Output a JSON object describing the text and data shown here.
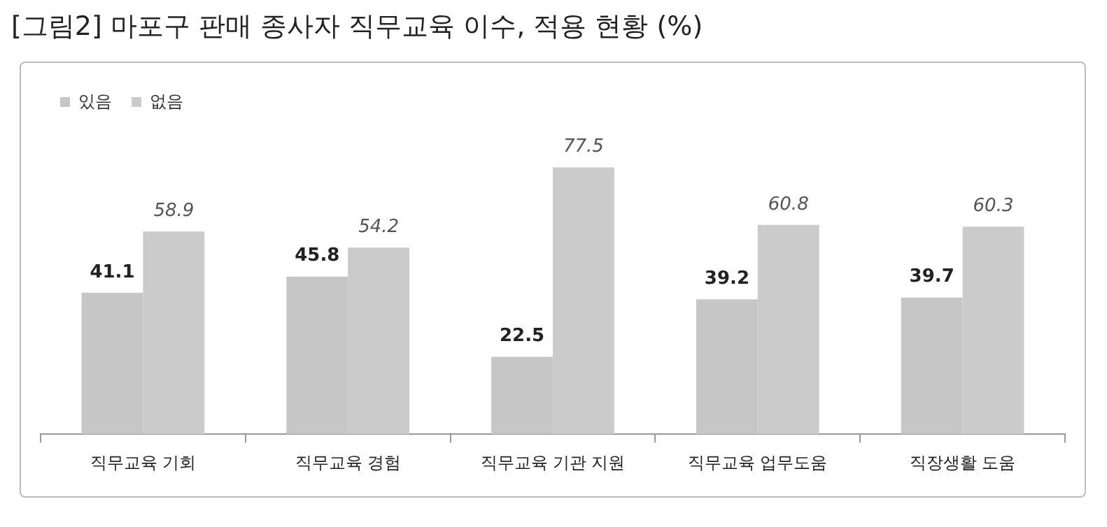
{
  "chart_data": {
    "type": "bar",
    "title": "[그림2] 마포구 판매 종사자 직무교육 이수, 적용 현황 (%)",
    "categories": [
      "직무교육 기회",
      "직무교육 경험",
      "직무교육 기관 지원",
      "직무교육 업무도움",
      "직장생활 도움"
    ],
    "series": [
      {
        "name": "있음",
        "color": "#c6c6c6",
        "values": [
          41.1,
          45.8,
          22.5,
          39.2,
          39.7
        ]
      },
      {
        "name": "없음",
        "color": "#cbcbcb",
        "values": [
          58.9,
          54.2,
          77.5,
          60.8,
          60.3
        ]
      }
    ],
    "data_labels": true,
    "legend": "top left",
    "grid": false
  }
}
